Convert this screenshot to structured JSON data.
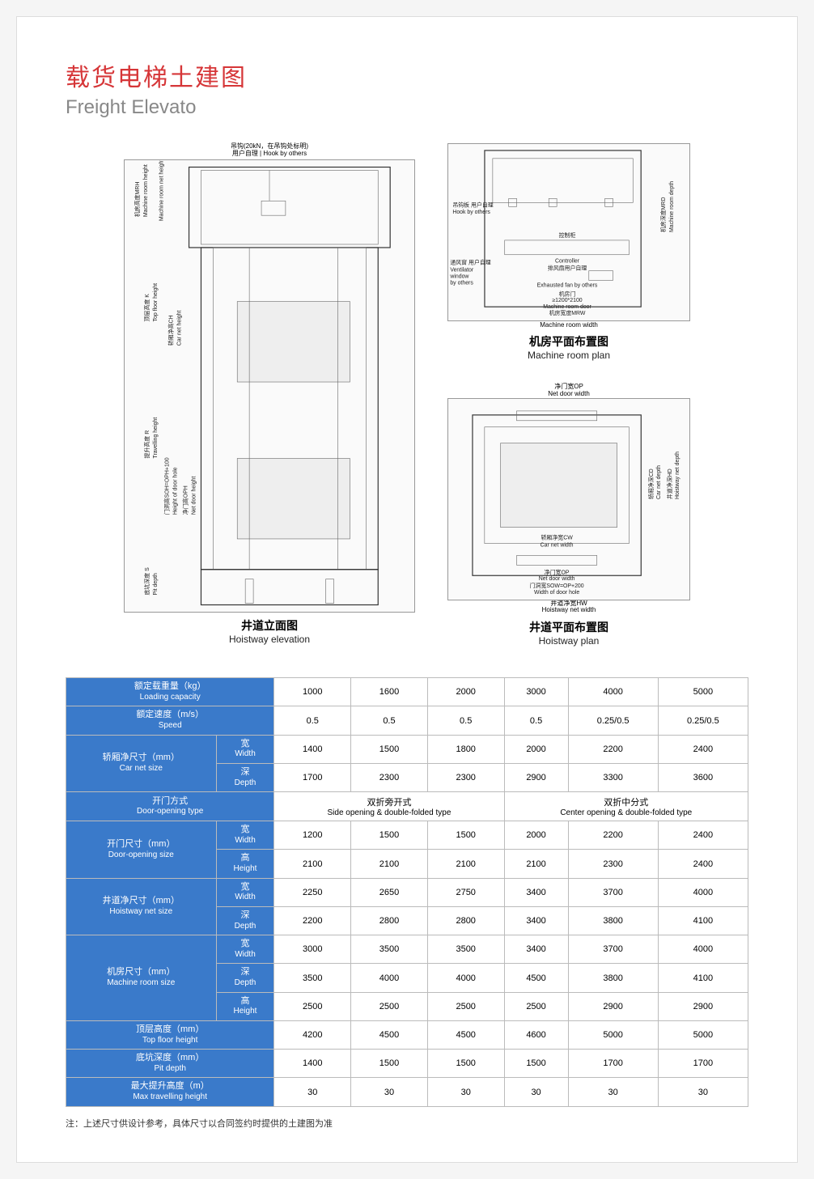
{
  "title": {
    "cn": "载货电梯土建图",
    "en": "Freight Elevato"
  },
  "diagrams": {
    "hoistway_elevation": {
      "caption_cn": "井道立面图",
      "caption_en": "Hoistway elevation"
    },
    "machine_room_plan": {
      "caption_cn": "机房平面布置图",
      "caption_en": "Machine room plan"
    },
    "hoistway_plan": {
      "caption_cn": "井道平面布置图",
      "caption_en": "Hoistway plan"
    },
    "labels": {
      "hook": {
        "cn": "吊钩(20kN，在吊钩处标明)",
        "en_cn": "用户自理",
        "en": "Hook by others"
      },
      "mrh": {
        "cn": "机房高度MRH",
        "en": "Machine room height"
      },
      "mrnh": {
        "cn": "机房净高",
        "en": "Machine room net height"
      },
      "mrd": {
        "cn": "机房深度MRD",
        "en": "Machine room depth"
      },
      "mrw": {
        "cn": "机房宽度MRW",
        "en": "Machine room width"
      },
      "mrdoor": {
        "cn": "机房门",
        "size": "≥1200*2100",
        "en": "Machine room door"
      },
      "ctrl": {
        "cn": "控制柜",
        "en": "Controller"
      },
      "vent": {
        "cn": "通风窗 用户自理",
        "en": "Ventilator window by others"
      },
      "fan": {
        "cn": "排风扇用户自理",
        "en": "Exhausted fan by others"
      },
      "hook2": {
        "cn": "吊钩板 用户自理",
        "en": "Hook by others"
      },
      "k": {
        "cn": "顶层高度 K",
        "en": "Top floor height"
      },
      "ch": {
        "cn": "轿厢净高CH",
        "en": "Car net height"
      },
      "r": {
        "cn": "提升高度 R",
        "en": "Travelling height"
      },
      "soh": {
        "cn": "门洞高SOH=OPH+100",
        "en": "Height of door hole"
      },
      "oph": {
        "cn": "净门高OPH",
        "en": "Net door height"
      },
      "s": {
        "cn": "底坑深度 S",
        "en": "Pit depth"
      },
      "op": {
        "cn": "净门宽OP",
        "en": "Net door width"
      },
      "cw": {
        "cn": "轿厢净宽CW",
        "en": "Car net width"
      },
      "cd": {
        "cn": "轿厢净深CD",
        "en": "Car net depth"
      },
      "hd": {
        "cn": "井道净深HD",
        "en": "Hoistway net depth"
      },
      "hw": {
        "cn": "井道净宽HW",
        "en": "Hoistway net width"
      },
      "sow": {
        "cn": "门洞宽SOW=OP+200",
        "en": "Width of door hole"
      }
    }
  },
  "styling": {
    "page_bg": "#ffffff",
    "title_cn_color": "#d63638",
    "title_en_color": "#888888",
    "header_bg": "#3a7aca",
    "header_text": "#ffffff",
    "border_color": "#bbbbbb",
    "diagram_line": "#666666",
    "title_cn_fontsize": 30,
    "title_en_fontsize": 24,
    "table_fontsize": 11
  },
  "table": {
    "rows": [
      {
        "label_cn": "额定载重量（kg）",
        "label_en": "Loading capacity",
        "sub": null,
        "values": [
          "1000",
          "1600",
          "2000",
          "3000",
          "4000",
          "5000"
        ]
      },
      {
        "label_cn": "额定速度（m/s）",
        "label_en": "Speed",
        "sub": null,
        "values": [
          "0.5",
          "0.5",
          "0.5",
          "0.5",
          "0.25/0.5",
          "0.25/0.5"
        ]
      },
      {
        "group": "轿厢净尺寸（mm）",
        "group_en": "Car net size",
        "subs": [
          {
            "cn": "宽",
            "en": "Width",
            "values": [
              "1400",
              "1500",
              "1800",
              "2000",
              "2200",
              "2400"
            ]
          },
          {
            "cn": "深",
            "en": "Depth",
            "values": [
              "1700",
              "2300",
              "2300",
              "2900",
              "3300",
              "3600"
            ]
          }
        ]
      },
      {
        "label_cn": "开门方式",
        "label_en": "Door-opening type",
        "sub": null,
        "merged": [
          {
            "span": 3,
            "cn": "双折旁开式",
            "en": "Side opening & double-folded type"
          },
          {
            "span": 3,
            "cn": "双折中分式",
            "en": "Center opening & double-folded type"
          }
        ]
      },
      {
        "group": "开门尺寸（mm）",
        "group_en": "Door-opening size",
        "subs": [
          {
            "cn": "宽",
            "en": "Width",
            "values": [
              "1200",
              "1500",
              "1500",
              "2000",
              "2200",
              "2400"
            ]
          },
          {
            "cn": "高",
            "en": "Height",
            "values": [
              "2100",
              "2100",
              "2100",
              "2100",
              "2300",
              "2400"
            ]
          }
        ]
      },
      {
        "group": "井道净尺寸（mm）",
        "group_en": "Hoistway net size",
        "subs": [
          {
            "cn": "宽",
            "en": "Width",
            "values": [
              "2250",
              "2650",
              "2750",
              "3400",
              "3700",
              "4000"
            ]
          },
          {
            "cn": "深",
            "en": "Depth",
            "values": [
              "2200",
              "2800",
              "2800",
              "3400",
              "3800",
              "4100"
            ]
          }
        ]
      },
      {
        "group": "机房尺寸（mm）",
        "group_en": "Machine room size",
        "subs": [
          {
            "cn": "宽",
            "en": "Width",
            "values": [
              "3000",
              "3500",
              "3500",
              "3400",
              "3700",
              "4000"
            ]
          },
          {
            "cn": "深",
            "en": "Depth",
            "values": [
              "3500",
              "4000",
              "4000",
              "4500",
              "3800",
              "4100"
            ]
          },
          {
            "cn": "高",
            "en": "Height",
            "values": [
              "2500",
              "2500",
              "2500",
              "2500",
              "2900",
              "2900"
            ]
          }
        ]
      },
      {
        "label_cn": "顶层高度（mm）",
        "label_en": "Top floor height",
        "sub": null,
        "values": [
          "4200",
          "4500",
          "4500",
          "4600",
          "5000",
          "5000"
        ]
      },
      {
        "label_cn": "底坑深度（mm）",
        "label_en": "Pit depth",
        "sub": null,
        "values": [
          "1400",
          "1500",
          "1500",
          "1500",
          "1700",
          "1700"
        ]
      },
      {
        "label_cn": "最大提升高度（m）",
        "label_en": "Max travelling height",
        "sub": null,
        "values": [
          "30",
          "30",
          "30",
          "30",
          "30",
          "30"
        ]
      }
    ]
  },
  "note": "注：上述尺寸供设计参考，具体尺寸以合同签约时提供的土建图为准"
}
